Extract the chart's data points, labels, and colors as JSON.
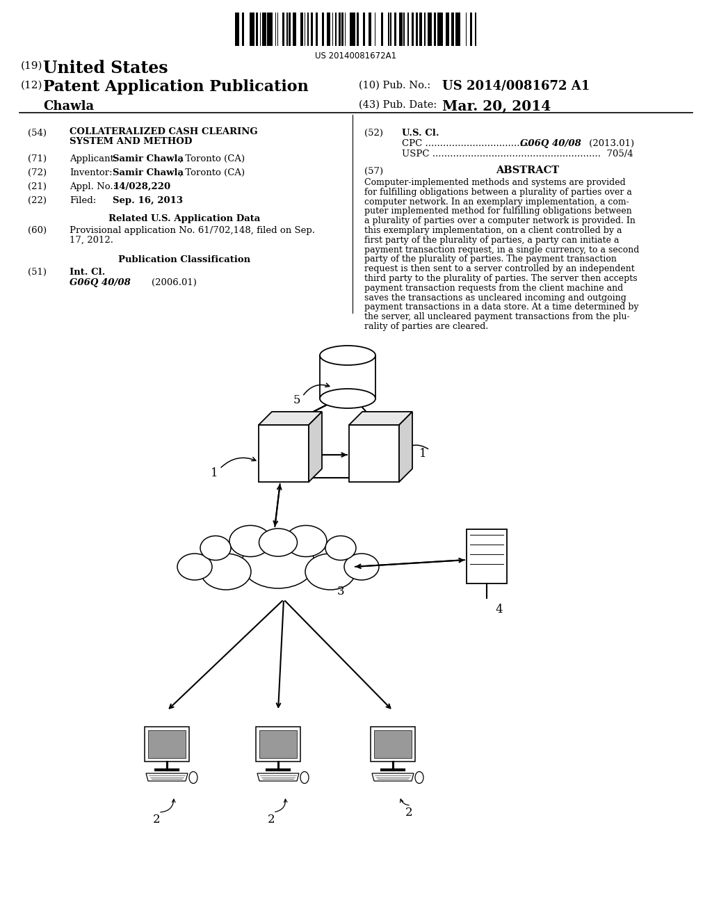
{
  "bg_color": "#ffffff",
  "barcode_text": "US 20140081672A1",
  "pub_no_value": "US 2014/0081672 A1",
  "pub_date_value": "Mar. 20, 2014",
  "abstract_text": "Computer-implemented methods and systems are provided for fulfilling obligations between a plurality of parties over a computer network. In an exemplary implementation, a com-puter implemented method for fulfilling obligations between a plurality of parties over a computer network is provided. In this exemplary implementation, on a client controlled by a first party of the plurality of parties, a party can initiate a payment transaction request, in a single currency, to a second party of the plurality of parties. The payment transaction request is then sent to a server controlled by an independent third party to the plurality of parties. The server then accepts payment transaction requests from the client machine and saves the transactions as uncleared incoming and outgoing payment transactions in a data store. At a time determined by the server, all uncleared payment transactions from the plu-rality of parties are cleared."
}
